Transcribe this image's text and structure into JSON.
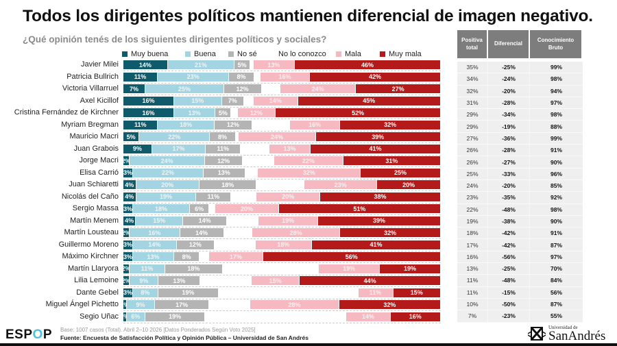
{
  "title": "Todos los dirigentes políticos mantienen diferencial de imagen negativo.",
  "subtitle": "¿Qué opinión tenés de los siguientes dirigentes políticos y sociales?",
  "colors": {
    "muy_buena": "#0f5b6b",
    "buena": "#a3d4e2",
    "no_se": "#b4b4b4",
    "no_lo_conozco": "#ffffff",
    "mala": "#f7b9c1",
    "muy_mala": "#b51a1a"
  },
  "chart_data": {
    "type": "bar",
    "stacked": true,
    "orientation": "horizontal",
    "legend": [
      "Muy buena",
      "Buena",
      "No sé",
      "No lo conozco",
      "Mala",
      "Muy mala"
    ],
    "legend_position": "top",
    "categories": [
      "Javier Milei",
      "Patricia Bullrich",
      "Victoria Villarruel",
      "Axel Kicillof",
      "Cristina Fernández de Kirchner",
      "Myriam Bregman",
      "Mauricio Macri",
      "Juan Grabois",
      "Jorge Macri",
      "Elisa Carrió",
      "Juan Schiaretti",
      "Nicolás del Caño",
      "Sergio Massa",
      "Martín Menem",
      "Martín Lousteau",
      "Guillermo Moreno",
      "Máximo Kirchner",
      "Martín Llaryora",
      "Lilia Lemoine",
      "Dante Gebel",
      "Miguel Ángel Pichetto",
      "Segio Uñac"
    ],
    "series": [
      {
        "name": "Muy buena",
        "values": [
          14,
          11,
          7,
          16,
          16,
          11,
          5,
          9,
          2,
          3,
          4,
          4,
          3,
          4,
          2,
          3,
          3,
          2,
          2,
          3,
          1,
          1
        ]
      },
      {
        "name": "Buena",
        "values": [
          21,
          23,
          25,
          15,
          13,
          18,
          22,
          17,
          24,
          22,
          20,
          19,
          18,
          15,
          16,
          14,
          13,
          11,
          9,
          8,
          9,
          6
        ]
      },
      {
        "name": "No sé",
        "values": [
          5,
          8,
          12,
          7,
          5,
          12,
          8,
          11,
          12,
          13,
          18,
          11,
          6,
          14,
          14,
          12,
          8,
          18,
          13,
          19,
          17,
          19
        ]
      },
      {
        "name": "No lo conozco",
        "values": [
          1,
          2,
          6,
          3,
          2,
          12,
          1,
          9,
          10,
          4,
          15,
          8,
          2,
          10,
          9,
          13,
          3,
          30,
          16,
          44,
          13,
          45
        ]
      },
      {
        "name": "Mala",
        "values": [
          13,
          16,
          24,
          14,
          12,
          16,
          24,
          13,
          22,
          32,
          23,
          20,
          20,
          19,
          28,
          18,
          17,
          19,
          15,
          11,
          28,
          14
        ]
      },
      {
        "name": "Muy mala",
        "values": [
          46,
          42,
          27,
          45,
          52,
          32,
          39,
          41,
          31,
          25,
          20,
          38,
          51,
          39,
          32,
          41,
          56,
          19,
          44,
          15,
          32,
          16
        ]
      }
    ],
    "table": {
      "headers": [
        "Positiva total",
        "Diferencial",
        "Conocimiento Bruto"
      ],
      "positiva_total": [
        "35%",
        "34%",
        "32%",
        "31%",
        "29%",
        "29%",
        "27%",
        "26%",
        "26%",
        "25%",
        "24%",
        "23%",
        "22%",
        "19%",
        "18%",
        "17%",
        "16%",
        "13%",
        "11%",
        "11%",
        "10%",
        "7%"
      ],
      "diferencial": [
        "-25%",
        "-24%",
        "-20%",
        "-28%",
        "-34%",
        "-19%",
        "-36%",
        "-28%",
        "-27%",
        "-33%",
        "-20%",
        "-35%",
        "-48%",
        "-38%",
        "-42%",
        "-42%",
        "-56%",
        "-25%",
        "-48%",
        "-15%",
        "-50%",
        "-23%"
      ],
      "conocimiento_bruto": [
        "99%",
        "98%",
        "94%",
        "97%",
        "98%",
        "88%",
        "99%",
        "91%",
        "90%",
        "96%",
        "85%",
        "92%",
        "98%",
        "90%",
        "91%",
        "87%",
        "97%",
        "70%",
        "84%",
        "56%",
        "87%",
        "55%"
      ]
    }
  },
  "footer": {
    "logo": "ESPOP",
    "base": "Base: 1007 casos (Total). Abril 2–10 2026 [Datos Ponderados Según Voto 2025]",
    "fuente": "Fuente: Encuesta de Satisfacción Política y Opinión Pública – Universidad de San Andrés",
    "university_small": "Universidad de",
    "university_big": "SanAndrés"
  }
}
